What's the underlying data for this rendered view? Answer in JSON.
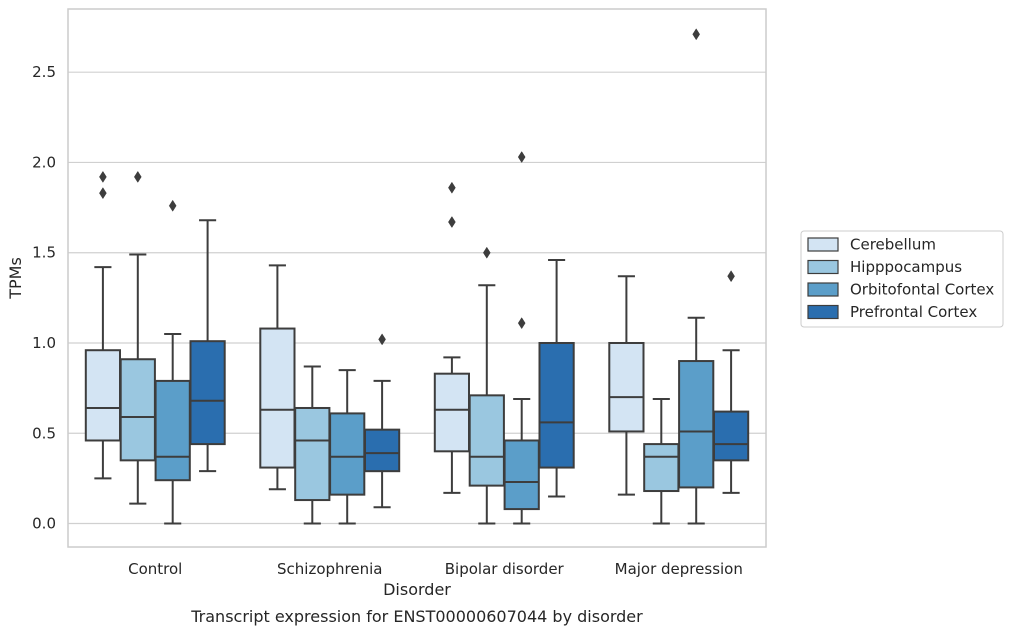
{
  "chart_data": {
    "type": "box",
    "title": "",
    "caption": "Transcript expression for ENST00000607044 by disorder",
    "xlabel": "Disorder",
    "ylabel": "TPMs",
    "ylim": [
      -0.13,
      2.85
    ],
    "yticks": [
      "0.0",
      "0.5",
      "1.0",
      "1.5",
      "2.0",
      "2.5"
    ],
    "grid": "horizontal",
    "legend_position": "right",
    "categories": [
      "Control",
      "Schizophrenia",
      "Bipolar disorder",
      "Major depression"
    ],
    "series": [
      {
        "name": "Cerebellum",
        "color": "#d3e4f3",
        "boxes": [
          {
            "q1": 0.46,
            "median": 0.64,
            "q3": 0.96,
            "whisker_low": 0.25,
            "whisker_high": 1.42,
            "outliers": [
              1.83,
              1.92
            ]
          },
          {
            "q1": 0.31,
            "median": 0.63,
            "q3": 1.08,
            "whisker_low": 0.19,
            "whisker_high": 1.43,
            "outliers": []
          },
          {
            "q1": 0.4,
            "median": 0.63,
            "q3": 0.83,
            "whisker_low": 0.17,
            "whisker_high": 0.92,
            "outliers": [
              1.67,
              1.86
            ]
          },
          {
            "q1": 0.51,
            "median": 0.7,
            "q3": 1.0,
            "whisker_low": 0.16,
            "whisker_high": 1.37,
            "outliers": []
          }
        ]
      },
      {
        "name": "Hipppocampus",
        "color": "#9ac7e0",
        "boxes": [
          {
            "q1": 0.35,
            "median": 0.59,
            "q3": 0.91,
            "whisker_low": 0.11,
            "whisker_high": 1.49,
            "outliers": [
              1.92
            ]
          },
          {
            "q1": 0.13,
            "median": 0.46,
            "q3": 0.64,
            "whisker_low": 0.0,
            "whisker_high": 0.87,
            "outliers": []
          },
          {
            "q1": 0.21,
            "median": 0.37,
            "q3": 0.71,
            "whisker_low": 0.0,
            "whisker_high": 1.32,
            "outliers": [
              1.5
            ]
          },
          {
            "q1": 0.18,
            "median": 0.37,
            "q3": 0.44,
            "whisker_low": 0.0,
            "whisker_high": 0.69,
            "outliers": []
          }
        ]
      },
      {
        "name": "Orbitofontal Cortex",
        "color": "#5b9ec9",
        "boxes": [
          {
            "q1": 0.24,
            "median": 0.37,
            "q3": 0.79,
            "whisker_low": 0.0,
            "whisker_high": 1.05,
            "outliers": [
              1.76
            ]
          },
          {
            "q1": 0.16,
            "median": 0.37,
            "q3": 0.61,
            "whisker_low": 0.0,
            "whisker_high": 0.85,
            "outliers": []
          },
          {
            "q1": 0.08,
            "median": 0.23,
            "q3": 0.46,
            "whisker_low": 0.0,
            "whisker_high": 0.69,
            "outliers": [
              1.11,
              2.03
            ]
          },
          {
            "q1": 0.2,
            "median": 0.51,
            "q3": 0.9,
            "whisker_low": 0.0,
            "whisker_high": 1.14,
            "outliers": [
              2.71
            ]
          }
        ]
      },
      {
        "name": "Prefrontal Cortex",
        "color": "#2a6eaf",
        "boxes": [
          {
            "q1": 0.44,
            "median": 0.68,
            "q3": 1.01,
            "whisker_low": 0.29,
            "whisker_high": 1.68,
            "outliers": []
          },
          {
            "q1": 0.29,
            "median": 0.39,
            "q3": 0.52,
            "whisker_low": 0.09,
            "whisker_high": 0.79,
            "outliers": [
              1.02
            ]
          },
          {
            "q1": 0.31,
            "median": 0.56,
            "q3": 1.0,
            "whisker_low": 0.15,
            "whisker_high": 1.46,
            "outliers": []
          },
          {
            "q1": 0.35,
            "median": 0.44,
            "q3": 0.62,
            "whisker_low": 0.17,
            "whisker_high": 0.96,
            "outliers": [
              1.37
            ]
          }
        ]
      }
    ]
  }
}
